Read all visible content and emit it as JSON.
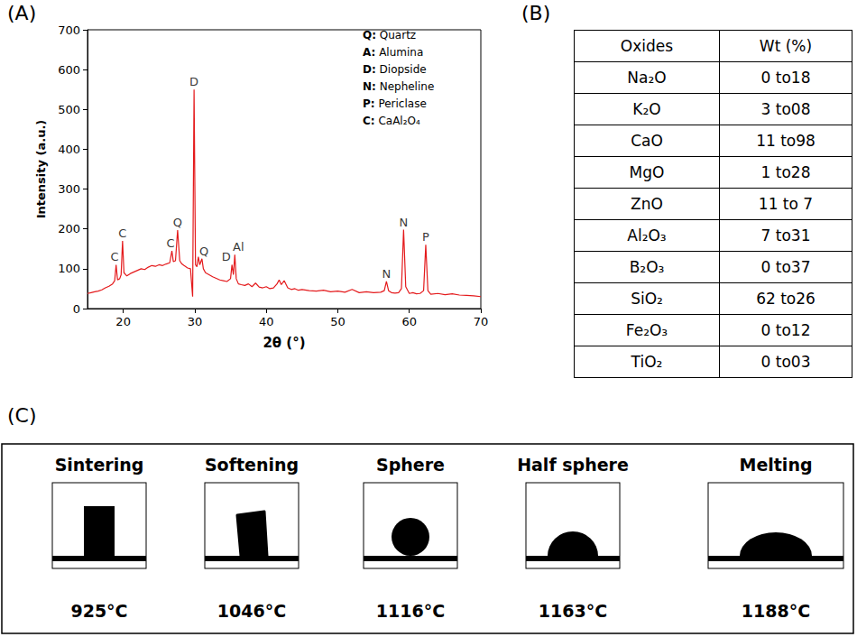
{
  "panel_labels": [
    "(A)",
    "(B)",
    "(C)"
  ],
  "chart_data": {
    "type": "line",
    "x_label": "2θ (°)",
    "y_label": "Intensity (a.u.)",
    "color": "#e41a1c",
    "grid": false,
    "xlim": [
      15,
      70
    ],
    "xticks": [
      20,
      30,
      40,
      50,
      60,
      70
    ],
    "ylim": [
      0,
      700
    ],
    "yticks": [
      0,
      100,
      200,
      300,
      400,
      500,
      600,
      700
    ],
    "x": [
      15,
      15.5,
      16,
      16.5,
      17,
      17.5,
      18,
      18.5,
      18.8,
      19,
      19.2,
      19.5,
      19.7,
      19.9,
      20.1,
      20.5,
      21,
      21.5,
      22,
      22.5,
      23,
      23.5,
      24,
      24.5,
      25,
      25.5,
      26,
      26.5,
      26.8,
      27,
      27.3,
      27.6,
      27.9,
      28.2,
      28.5,
      29,
      29.4,
      29.7,
      29.9,
      30.1,
      30.3,
      30.5,
      30.7,
      31,
      31.2,
      31.5,
      32,
      32.5,
      33,
      33.5,
      34,
      34.5,
      35,
      35.2,
      35.4,
      35.6,
      35.8,
      36.1,
      36.5,
      37,
      37.5,
      38,
      38.5,
      39,
      39.5,
      40,
      40.5,
      41,
      41.5,
      41.8,
      42.1,
      42.5,
      43,
      43.5,
      44,
      44.5,
      45,
      46,
      47,
      48,
      49,
      50,
      51,
      52,
      53,
      54,
      55,
      56,
      56.5,
      56.8,
      57.1,
      57.5,
      58,
      58.5,
      58.9,
      59.2,
      59.5,
      60,
      60.5,
      61,
      61.5,
      62,
      62.3,
      62.6,
      63,
      64,
      65,
      66,
      67,
      68,
      69,
      70
    ],
    "values": [
      38,
      40,
      42,
      44,
      47,
      52,
      56,
      62,
      70,
      110,
      72,
      75,
      85,
      170,
      90,
      82,
      88,
      92,
      96,
      100,
      98,
      104,
      108,
      106,
      110,
      108,
      112,
      115,
      145,
      118,
      120,
      197,
      120,
      112,
      108,
      102,
      100,
      30,
      550,
      110,
      105,
      130,
      110,
      125,
      100,
      90,
      85,
      80,
      76,
      72,
      70,
      68,
      75,
      110,
      85,
      135,
      75,
      62,
      60,
      58,
      62,
      55,
      64,
      54,
      52,
      55,
      50,
      52,
      62,
      72,
      60,
      70,
      52,
      48,
      50,
      46,
      48,
      45,
      44,
      46,
      42,
      44,
      41,
      48,
      40,
      42,
      40,
      41,
      45,
      68,
      45,
      40,
      39,
      40,
      50,
      198,
      55,
      38,
      40,
      37,
      38,
      45,
      160,
      45,
      36,
      38,
      35,
      37,
      34,
      33,
      32,
      30
    ],
    "annotations": [
      {
        "text": "C",
        "x": 18.8,
        "y": 110
      },
      {
        "text": "C",
        "x": 19.9,
        "y": 170
      },
      {
        "text": "C",
        "x": 26.6,
        "y": 145
      },
      {
        "text": "Q",
        "x": 27.6,
        "y": 197
      },
      {
        "text": "D",
        "x": 29.9,
        "y": 550
      },
      {
        "text": "Q",
        "x": 31.3,
        "y": 125
      },
      {
        "text": "D",
        "x": 34.4,
        "y": 110
      },
      {
        "text": "Al",
        "x": 36.1,
        "y": 135
      },
      {
        "text": "N",
        "x": 56.8,
        "y": 68
      },
      {
        "text": "N",
        "x": 59.2,
        "y": 198
      },
      {
        "text": "P",
        "x": 62.3,
        "y": 160
      }
    ],
    "key": [
      "Q: Quartz",
      "A: Alumina",
      "D: Diopside",
      "N: Nepheline",
      "P: Periclase",
      "C: CaAl₂O₄"
    ]
  },
  "table": {
    "header": [
      "Oxides",
      "Wt (%)"
    ],
    "rows": [
      [
        "Na₂O",
        "0 to18"
      ],
      [
        "K₂O",
        "3 to08"
      ],
      [
        "CaO",
        "11 to98"
      ],
      [
        "MgO",
        "1 to28"
      ],
      [
        "ZnO",
        "11 to 7"
      ],
      [
        "Al₂O₃",
        "7 to31"
      ],
      [
        "B₂O₃",
        "0 to37"
      ],
      [
        "SiO₂",
        "62 to26"
      ],
      [
        "Fe₂O₃",
        "0 to12"
      ],
      [
        "TiO₂",
        "0 to03"
      ]
    ]
  },
  "fusion": [
    {
      "stage": "Sintering",
      "temperature": "925°C"
    },
    {
      "stage": "Softening",
      "temperature": "1046°C"
    },
    {
      "stage": "Sphere",
      "temperature": "1116°C"
    },
    {
      "stage": "Half sphere",
      "temperature": "1163°C"
    },
    {
      "stage": "Melting",
      "temperature": "1188°C"
    }
  ]
}
